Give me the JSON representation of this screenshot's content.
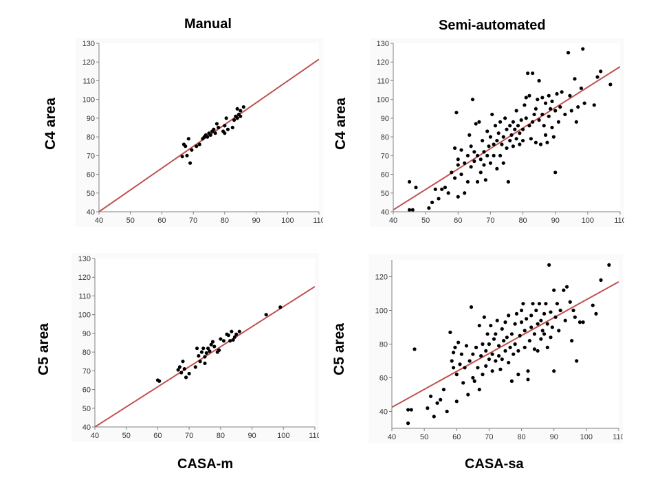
{
  "colors": {
    "line": "#c0504d",
    "point": "#000000",
    "axis": "#7f7f7f",
    "panel_bg": "#fafafa"
  },
  "titles": {
    "col_left": "Manual",
    "col_right": "Semi-automated",
    "row_top_y": "C4 area",
    "row_bottom_y": "C5 area",
    "x_left": "CASA-m",
    "x_right": "CASA-sa"
  },
  "chart_data": [
    {
      "type": "scatter",
      "title": "Manual",
      "xlabel": "CASA-m",
      "ylabel": "C4 area",
      "xlim": [
        40,
        110
      ],
      "ylim": [
        40,
        130
      ],
      "xticks": [
        40,
        50,
        60,
        70,
        80,
        90,
        100,
        110
      ],
      "yticks": [
        40,
        50,
        60,
        70,
        80,
        90,
        100,
        110,
        120,
        130
      ],
      "fit_line": [
        [
          40,
          40
        ],
        [
          110,
          121.5
        ]
      ],
      "points": [
        [
          66.5,
          69.5
        ],
        [
          67,
          76
        ],
        [
          67.5,
          75
        ],
        [
          68,
          70
        ],
        [
          68.5,
          79
        ],
        [
          69,
          66
        ],
        [
          69.5,
          73
        ],
        [
          71,
          75
        ],
        [
          72,
          76
        ],
        [
          73,
          79
        ],
        [
          73.5,
          80
        ],
        [
          74,
          81
        ],
        [
          74.5,
          80
        ],
        [
          75,
          82
        ],
        [
          75.5,
          81
        ],
        [
          76,
          83
        ],
        [
          76.5,
          84
        ],
        [
          77,
          82
        ],
        [
          77.5,
          87
        ],
        [
          78,
          85
        ],
        [
          79.5,
          83
        ],
        [
          80,
          86
        ],
        [
          80,
          82
        ],
        [
          80.5,
          90
        ],
        [
          81,
          84
        ],
        [
          82.5,
          85
        ],
        [
          83,
          89
        ],
        [
          83.5,
          91
        ],
        [
          84,
          95
        ],
        [
          84,
          90
        ],
        [
          84.5,
          92
        ],
        [
          85,
          94
        ],
        [
          85,
          91
        ],
        [
          86,
          96
        ]
      ]
    },
    {
      "type": "scatter",
      "title": "Semi-automated",
      "xlabel": "CASA-sa",
      "ylabel": "C4 area",
      "xlim": [
        40,
        110
      ],
      "ylim": [
        40,
        130
      ],
      "xticks": [
        40,
        50,
        60,
        70,
        80,
        90,
        100,
        110
      ],
      "yticks": [
        40,
        50,
        60,
        70,
        80,
        90,
        100,
        110,
        120,
        130
      ],
      "fit_line": [
        [
          40,
          41
        ],
        [
          110,
          117.5
        ]
      ],
      "points": [
        [
          45,
          56
        ],
        [
          45,
          41
        ],
        [
          46,
          41
        ],
        [
          47,
          53
        ],
        [
          51,
          42
        ],
        [
          52,
          45
        ],
        [
          53,
          52
        ],
        [
          54,
          47
        ],
        [
          55,
          52
        ],
        [
          56,
          53
        ],
        [
          57,
          50
        ],
        [
          58,
          61
        ],
        [
          59,
          58
        ],
        [
          59,
          74
        ],
        [
          59.5,
          93
        ],
        [
          60,
          65
        ],
        [
          60,
          68
        ],
        [
          60,
          48
        ],
        [
          61,
          60
        ],
        [
          61,
          73
        ],
        [
          62,
          66
        ],
        [
          62,
          50
        ],
        [
          63,
          56
        ],
        [
          63,
          70
        ],
        [
          63.5,
          81
        ],
        [
          64,
          64
        ],
        [
          64,
          75
        ],
        [
          64.5,
          100
        ],
        [
          65,
          72
        ],
        [
          65,
          67
        ],
        [
          65.5,
          87
        ],
        [
          66,
          70
        ],
        [
          66,
          56
        ],
        [
          66.5,
          88
        ],
        [
          67,
          68
        ],
        [
          67,
          61
        ],
        [
          67.5,
          78
        ],
        [
          68,
          65
        ],
        [
          68,
          72
        ],
        [
          68.5,
          57
        ],
        [
          69,
          70
        ],
        [
          69,
          83
        ],
        [
          69.5,
          75
        ],
        [
          70,
          66
        ],
        [
          70,
          80
        ],
        [
          70.5,
          92
        ],
        [
          71,
          70
        ],
        [
          71,
          76
        ],
        [
          71.5,
          86
        ],
        [
          72,
          63
        ],
        [
          72,
          78
        ],
        [
          72.5,
          82
        ],
        [
          73,
          88
        ],
        [
          73,
          70
        ],
        [
          73.5,
          76
        ],
        [
          74,
          66
        ],
        [
          74,
          80
        ],
        [
          74.5,
          90
        ],
        [
          75,
          74
        ],
        [
          75,
          84
        ],
        [
          75.5,
          56
        ],
        [
          76,
          78
        ],
        [
          76,
          86
        ],
        [
          76.5,
          81
        ],
        [
          77,
          88
        ],
        [
          77,
          75
        ],
        [
          77.5,
          84
        ],
        [
          78,
          79
        ],
        [
          78,
          94
        ],
        [
          78.5,
          86
        ],
        [
          79,
          76
        ],
        [
          79,
          82
        ],
        [
          79.5,
          89
        ],
        [
          80,
          78
        ],
        [
          80,
          84
        ],
        [
          80.5,
          97
        ],
        [
          81,
          90
        ],
        [
          81,
          101
        ],
        [
          81.5,
          114
        ],
        [
          82,
          86
        ],
        [
          82,
          102
        ],
        [
          82.5,
          79
        ],
        [
          83,
          88
        ],
        [
          83,
          114
        ],
        [
          83.5,
          92
        ],
        [
          84,
          77
        ],
        [
          84,
          95
        ],
        [
          84.5,
          100
        ],
        [
          85,
          89
        ],
        [
          85,
          110
        ],
        [
          85.5,
          76
        ],
        [
          86,
          92
        ],
        [
          86,
          101
        ],
        [
          86.5,
          86
        ],
        [
          87,
          98
        ],
        [
          87,
          81
        ],
        [
          87.5,
          77
        ],
        [
          88,
          91
        ],
        [
          88,
          102
        ],
        [
          88.5,
          95
        ],
        [
          89,
          85
        ],
        [
          89,
          99
        ],
        [
          89.5,
          80
        ],
        [
          90,
          94
        ],
        [
          90,
          61
        ],
        [
          90.5,
          103
        ],
        [
          91,
          88
        ],
        [
          91.5,
          96
        ],
        [
          92,
          104
        ],
        [
          93,
          92
        ],
        [
          94,
          125
        ],
        [
          94.5,
          102
        ],
        [
          95,
          94
        ],
        [
          96,
          111
        ],
        [
          96.5,
          88
        ],
        [
          97,
          96
        ],
        [
          98,
          106
        ],
        [
          98.5,
          127
        ],
        [
          99,
          98
        ],
        [
          102,
          97
        ],
        [
          103,
          112
        ],
        [
          104,
          115
        ],
        [
          107,
          108
        ]
      ]
    },
    {
      "type": "scatter",
      "title": "Manual",
      "xlabel": "CASA-m",
      "ylabel": "C5 area",
      "xlim": [
        40,
        110
      ],
      "ylim": [
        40,
        130
      ],
      "xticks": [
        40,
        50,
        60,
        70,
        80,
        90,
        100,
        110
      ],
      "yticks": [
        40,
        50,
        60,
        70,
        80,
        90,
        100,
        110,
        120,
        130
      ],
      "fit_line": [
        [
          40,
          40
        ],
        [
          110,
          115
        ]
      ],
      "points": [
        [
          60,
          65
        ],
        [
          60.5,
          64.5
        ],
        [
          66.5,
          70.5
        ],
        [
          67,
          72
        ],
        [
          67.5,
          69
        ],
        [
          68,
          75
        ],
        [
          68.5,
          71
        ],
        [
          69,
          66.5
        ],
        [
          70,
          68.5
        ],
        [
          72,
          72
        ],
        [
          72.5,
          82
        ],
        [
          73,
          78
        ],
        [
          73.5,
          75
        ],
        [
          74,
          80
        ],
        [
          74.5,
          82
        ],
        [
          75,
          77.5
        ],
        [
          75,
          74
        ],
        [
          75.5,
          79.5
        ],
        [
          76,
          82
        ],
        [
          76.5,
          80.5
        ],
        [
          77,
          84
        ],
        [
          77.5,
          85.5
        ],
        [
          78,
          83
        ],
        [
          79,
          80
        ],
        [
          79.5,
          81
        ],
        [
          80,
          87
        ],
        [
          81,
          86
        ],
        [
          82,
          89.5
        ],
        [
          82.5,
          89
        ],
        [
          83,
          86
        ],
        [
          83.5,
          91
        ],
        [
          84,
          86.5
        ],
        [
          84.5,
          88
        ],
        [
          85,
          89.5
        ],
        [
          86,
          91
        ],
        [
          94.5,
          100
        ],
        [
          99,
          104
        ]
      ]
    },
    {
      "type": "scatter",
      "title": "Semi-automated",
      "xlabel": "CASA-sa",
      "ylabel": "C5 area",
      "xlim": [
        40,
        110
      ],
      "ylim": [
        30,
        130
      ],
      "xticks": [
        40,
        50,
        60,
        70,
        80,
        90,
        100,
        110
      ],
      "yticks": [
        40,
        60,
        80,
        100,
        120
      ],
      "fit_line": [
        [
          40,
          42.5
        ],
        [
          110,
          117
        ]
      ],
      "points": [
        [
          45,
          33
        ],
        [
          45,
          41
        ],
        [
          46,
          41
        ],
        [
          47,
          77
        ],
        [
          51,
          42
        ],
        [
          52,
          49
        ],
        [
          53,
          37
        ],
        [
          54,
          45
        ],
        [
          55,
          47
        ],
        [
          56,
          53
        ],
        [
          57,
          40
        ],
        [
          58,
          87
        ],
        [
          58.5,
          70
        ],
        [
          59,
          66
        ],
        [
          59,
          75
        ],
        [
          59.5,
          78
        ],
        [
          60,
          46
        ],
        [
          60,
          62
        ],
        [
          60.5,
          81
        ],
        [
          61,
          68
        ],
        [
          61.5,
          74
        ],
        [
          62,
          57
        ],
        [
          62.5,
          66
        ],
        [
          63,
          79
        ],
        [
          63.5,
          50
        ],
        [
          64,
          70
        ],
        [
          64.5,
          102
        ],
        [
          65,
          60
        ],
        [
          65,
          74
        ],
        [
          65.5,
          58
        ],
        [
          66,
          78
        ],
        [
          66.5,
          66
        ],
        [
          67,
          91
        ],
        [
          67,
          53
        ],
        [
          67.5,
          73
        ],
        [
          68,
          62
        ],
        [
          68,
          80
        ],
        [
          68.5,
          96
        ],
        [
          69,
          67
        ],
        [
          69,
          76
        ],
        [
          69.5,
          86
        ],
        [
          70,
          71
        ],
        [
          70,
          80
        ],
        [
          70.5,
          91
        ],
        [
          71,
          64
        ],
        [
          71,
          74
        ],
        [
          71.5,
          83
        ],
        [
          72,
          70
        ],
        [
          72,
          86
        ],
        [
          72.5,
          94
        ],
        [
          73,
          73
        ],
        [
          73,
          79
        ],
        [
          73.5,
          65
        ],
        [
          74,
          89
        ],
        [
          74,
          71
        ],
        [
          74.5,
          82
        ],
        [
          75,
          76
        ],
        [
          75,
          93
        ],
        [
          75.5,
          84
        ],
        [
          76,
          69
        ],
        [
          76,
          97
        ],
        [
          76.5,
          78
        ],
        [
          77,
          58
        ],
        [
          77,
          86
        ],
        [
          77.5,
          74
        ],
        [
          78,
          92
        ],
        [
          78,
          80
        ],
        [
          78.5,
          98
        ],
        [
          79,
          62
        ],
        [
          79,
          76
        ],
        [
          79.5,
          85
        ],
        [
          80,
          93
        ],
        [
          80,
          100
        ],
        [
          80.5,
          104
        ],
        [
          81,
          78
        ],
        [
          81,
          88
        ],
        [
          81.5,
          95
        ],
        [
          82,
          59
        ],
        [
          82,
          64
        ],
        [
          82.5,
          82
        ],
        [
          83,
          97
        ],
        [
          83,
          90
        ],
        [
          83.5,
          104
        ],
        [
          84,
          77
        ],
        [
          84,
          86
        ],
        [
          84.5,
          100
        ],
        [
          85,
          92
        ],
        [
          85,
          76
        ],
        [
          85.5,
          104
        ],
        [
          86,
          83
        ],
        [
          86,
          94
        ],
        [
          86.5,
          88
        ],
        [
          87,
          98
        ],
        [
          87,
          86
        ],
        [
          87.5,
          104
        ],
        [
          88,
          78
        ],
        [
          88,
          92
        ],
        [
          88.5,
          127
        ],
        [
          89,
          84
        ],
        [
          89,
          99
        ],
        [
          89.5,
          90
        ],
        [
          90,
          64
        ],
        [
          90,
          112
        ],
        [
          90.5,
          96
        ],
        [
          91,
          104
        ],
        [
          91.5,
          88
        ],
        [
          92,
          100
        ],
        [
          93,
          112
        ],
        [
          93.5,
          94
        ],
        [
          94,
          114
        ],
        [
          95,
          105
        ],
        [
          95.5,
          82
        ],
        [
          96,
          100
        ],
        [
          96.5,
          96
        ],
        [
          97,
          70
        ],
        [
          98,
          93
        ],
        [
          99,
          93
        ],
        [
          102,
          103
        ],
        [
          103,
          98
        ],
        [
          104.5,
          118
        ],
        [
          107,
          127
        ]
      ]
    }
  ]
}
